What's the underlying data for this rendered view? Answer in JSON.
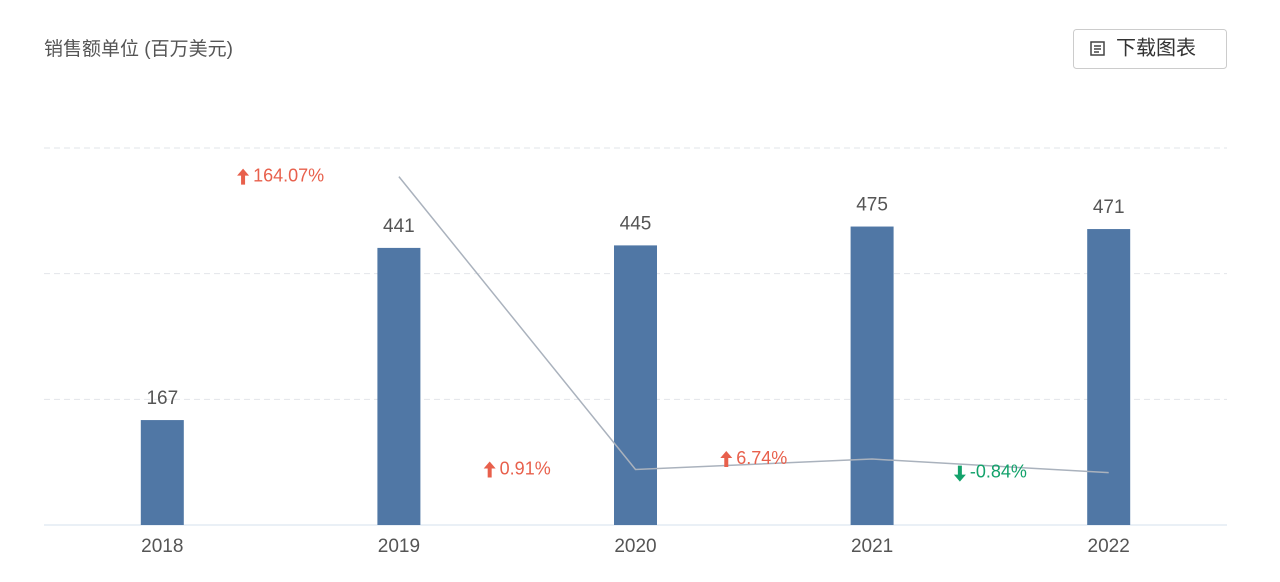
{
  "chart_data": {
    "type": "bar",
    "title": "销售额单位 (百万美元)",
    "categories": [
      "2018",
      "2019",
      "2020",
      "2021",
      "2022"
    ],
    "ylim": [
      0,
      600
    ],
    "yticks": [
      0,
      200,
      400,
      600
    ],
    "grid": true,
    "y2lim": [
      -30,
      180
    ],
    "series": [
      {
        "type": "bar",
        "color": "#5077a5",
        "values": [
          167,
          441,
          445,
          475,
          471
        ]
      },
      {
        "type": "line",
        "axis": "y2",
        "color": "#aab2bd",
        "up_color": "#e8604c",
        "down_color": "#13a26b",
        "values": [
          null,
          164.07,
          0.91,
          6.74,
          -0.84
        ],
        "value_labels": [
          null,
          "164.07%",
          "0.91%",
          "6.74%",
          "-0.84%"
        ]
      }
    ]
  },
  "toolbar": {
    "download_button": "下载图表"
  }
}
